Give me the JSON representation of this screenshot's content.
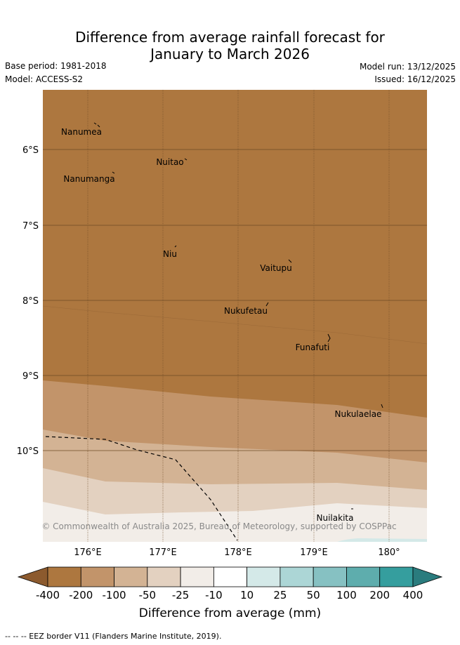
{
  "title_line1": "Difference from average rainfall forecast for",
  "title_line2": "January to March 2026",
  "base_period": "Base period: 1981-2018",
  "model": "Model: ACCESS-S2",
  "model_run": "Model run: 13/12/2025",
  "issued": "Issued: 16/12/2025",
  "map": {
    "lat_labels": [
      "6°S",
      "7°S",
      "8°S",
      "9°S",
      "10°S"
    ],
    "lon_labels": [
      "176°E",
      "177°E",
      "178°E",
      "179°E",
      "180°"
    ],
    "islands": [
      "Nanumea",
      "Nuitao",
      "Nanumanga",
      "Niu",
      "Vaitupu",
      "Nukufetau",
      "Funafuti",
      "Nukulaelae",
      "Nuilakita"
    ],
    "copyright": "© Commonwealth of Australia 2025, Bureau of Meteorology, supported by COSPPac"
  },
  "colorbar": {
    "labels": [
      "-400",
      "-200",
      "-100",
      "-50",
      "-25",
      "-10",
      "10",
      "25",
      "50",
      "100",
      "200",
      "400"
    ],
    "colors": [
      "#8c5a2e",
      "#ad773f",
      "#c2946a",
      "#d3b394",
      "#e3d1c0",
      "#f2ede8",
      "#ffffff",
      "#d4e9e8",
      "#acd6d6",
      "#86c1c2",
      "#5eadad",
      "#359e9e",
      "#2a7c7e"
    ],
    "title": "Difference from average (mm)"
  },
  "footnote": "-- -- -- EEZ border V11 (Flanders Marine Institute, 2019)."
}
